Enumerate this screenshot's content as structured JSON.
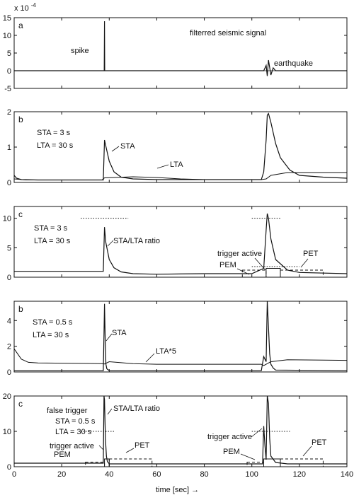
{
  "xaxis": {
    "ticks": [
      0,
      20,
      40,
      60,
      80,
      100,
      120,
      140
    ],
    "label": "time [sec] →",
    "range": [
      0,
      140
    ]
  },
  "chart_data": [
    {
      "type": "line",
      "panel_letter": "a",
      "exponent_label": "x 10",
      "exponent_power": "-4",
      "ylim": [
        -5,
        15
      ],
      "yticks": [
        -5,
        0,
        5,
        10,
        15
      ],
      "annotations": [
        "spike",
        "filterred seismic signal",
        "earthquake"
      ],
      "series": [
        {
          "values_x": [
            0,
            37.9,
            38,
            38.1,
            105,
            106,
            106.5,
            107,
            108,
            109,
            110,
            140
          ],
          "values_y": [
            0,
            0,
            14,
            0,
            0,
            1.5,
            -1.5,
            3,
            -1.2,
            0.8,
            0,
            0
          ]
        }
      ]
    },
    {
      "type": "line",
      "panel_letter": "b",
      "params": [
        "STA = 3 s",
        "LTA = 30 s"
      ],
      "ylim": [
        0,
        2
      ],
      "yticks": [
        0,
        1,
        2
      ],
      "annotations": [
        "STA",
        "LTA"
      ],
      "series": [
        {
          "name": "STA",
          "x": [
            0,
            1,
            3,
            10,
            20,
            37.5,
            38,
            39,
            40,
            42,
            45,
            50,
            60,
            80,
            100,
            104,
            105,
            106,
            106.5,
            107,
            108,
            110,
            112,
            116,
            120,
            130,
            140
          ],
          "y": [
            0.2,
            0.12,
            0.08,
            0.07,
            0.07,
            0.07,
            1.2,
            0.9,
            0.6,
            0.3,
            0.15,
            0.1,
            0.08,
            0.08,
            0.08,
            0.08,
            0.3,
            1.2,
            1.9,
            1.95,
            1.7,
            1.1,
            0.7,
            0.35,
            0.2,
            0.15,
            0.12
          ]
        },
        {
          "name": "LTA",
          "x": [
            0,
            5,
            37,
            38,
            50,
            60,
            70,
            80,
            104,
            106,
            108,
            115,
            140
          ],
          "y": [
            0.1,
            0.07,
            0.07,
            0.13,
            0.16,
            0.14,
            0.1,
            0.08,
            0.08,
            0.1,
            0.2,
            0.28,
            0.28
          ]
        }
      ]
    },
    {
      "type": "line",
      "panel_letter": "c",
      "params": [
        "STA = 3 s",
        "LTA = 30 s"
      ],
      "ylim": [
        0,
        12
      ],
      "yticks": [
        0,
        5,
        10
      ],
      "annotations": [
        "STA/LTA ratio",
        "trigger active",
        "PEM",
        "PET"
      ],
      "series": [
        {
          "name": "STA/LTA ratio",
          "x": [
            0,
            2,
            10,
            37.5,
            38,
            38.5,
            40,
            42,
            45,
            50,
            60,
            80,
            100,
            105,
            106,
            106.5,
            107,
            108,
            110,
            115,
            120,
            140
          ],
          "y": [
            1,
            1,
            1,
            1,
            8.5,
            6,
            3,
            1.6,
            0.9,
            0.6,
            0.5,
            0.6,
            0.6,
            1.5,
            8,
            10.8,
            10,
            6.5,
            3,
            1.2,
            0.8,
            0.6
          ]
        }
      ],
      "threshold_lines": [
        {
          "x": [
            28,
            48
          ],
          "y": 10
        },
        {
          "x": [
            100,
            112
          ],
          "y": 10
        },
        {
          "x": [
            100,
            120
          ],
          "y": 1.8
        }
      ],
      "windows": [
        {
          "label": "PEM",
          "x": [
            96,
            106
          ],
          "y": [
            0,
            1.2
          ],
          "style": "dashed"
        },
        {
          "label": "trigger active",
          "x": [
            106,
            112
          ],
          "y": [
            0,
            1.5
          ],
          "style": "solid"
        },
        {
          "label": "PET",
          "x": [
            112,
            130
          ],
          "y": [
            0,
            1.2
          ],
          "style": "dashed"
        }
      ]
    },
    {
      "type": "line",
      "panel_letter": "b",
      "params": [
        "STA = 0.5 s",
        "LTA = 30 s"
      ],
      "ylim": [
        0,
        5.5
      ],
      "yticks": [
        0,
        2,
        4
      ],
      "annotations": [
        "STA",
        "LTA*5"
      ],
      "series": [
        {
          "name": "STA",
          "x": [
            0,
            5,
            37.5,
            37.8,
            38,
            38.3,
            38.6,
            39,
            40,
            104,
            105,
            106,
            106.5,
            107,
            107.5,
            108,
            109,
            110,
            140
          ],
          "y": [
            0.1,
            0.1,
            0.1,
            3,
            5.3,
            2.5,
            0.6,
            0.25,
            0.1,
            0.1,
            1.2,
            0.8,
            5.5,
            3.5,
            1.4,
            0.6,
            0.3,
            0.15,
            0.1
          ]
        },
        {
          "name": "LTA*5",
          "x": [
            0,
            3,
            6,
            10,
            37,
            38,
            40,
            50,
            60,
            100,
            104,
            105,
            108,
            115,
            130,
            140
          ],
          "y": [
            1.8,
            1.0,
            0.75,
            0.7,
            0.65,
            0.62,
            0.8,
            0.65,
            0.6,
            0.6,
            0.6,
            0.5,
            0.8,
            0.95,
            0.92,
            0.9
          ]
        }
      ]
    },
    {
      "type": "line",
      "panel_letter": "c",
      "params": [
        "STA = 0.5 s",
        "LTA = 30 s"
      ],
      "ylim": [
        0,
        20
      ],
      "yticks": [
        0,
        10,
        20
      ],
      "annotations": [
        "false trigger",
        "STA/LTA ratio",
        "trigger active",
        "PEM",
        "PET",
        "trigger active",
        "PEM",
        "PET"
      ],
      "series": [
        {
          "name": "STA/LTA ratio",
          "x": [
            0,
            10,
            20,
            30,
            37.5,
            37.8,
            38,
            38.4,
            38.8,
            39.2,
            40,
            45,
            60,
            80,
            100,
            104.5,
            105,
            105.5,
            106,
            106.5,
            107,
            107.5,
            108,
            110,
            115,
            140
          ],
          "y": [
            1,
            1,
            1,
            1,
            1,
            20,
            19,
            8,
            3,
            1.5,
            0.8,
            0.8,
            0.8,
            0.8,
            0.8,
            0.8,
            11.5,
            6,
            2,
            20,
            18,
            8,
            3,
            1.2,
            0.8,
            0.8
          ]
        }
      ],
      "threshold_lines": [
        {
          "x": [
            28,
            42
          ],
          "y": 10
        },
        {
          "x": [
            100,
            116
          ],
          "y": 10
        }
      ],
      "windows": [
        {
          "label": "PEM",
          "x": [
            30,
            38
          ],
          "y": [
            0,
            1.3
          ],
          "style": "dashed"
        },
        {
          "label": "trigger active",
          "x": [
            38,
            40
          ],
          "y": [
            0,
            2.2
          ],
          "style": "solid"
        },
        {
          "label": "PET",
          "x": [
            40,
            58
          ],
          "y": [
            0,
            2.2
          ],
          "style": "dashed"
        },
        {
          "label": "PEM",
          "x": [
            98,
            105
          ],
          "y": [
            0,
            1.3
          ],
          "style": "dashed"
        },
        {
          "label": "trigger active",
          "x": [
            105,
            112
          ],
          "y": [
            0,
            2.2
          ],
          "style": "solid"
        },
        {
          "label": "PET",
          "x": [
            112,
            130
          ],
          "y": [
            0,
            2.2
          ],
          "style": "dashed"
        }
      ]
    }
  ]
}
